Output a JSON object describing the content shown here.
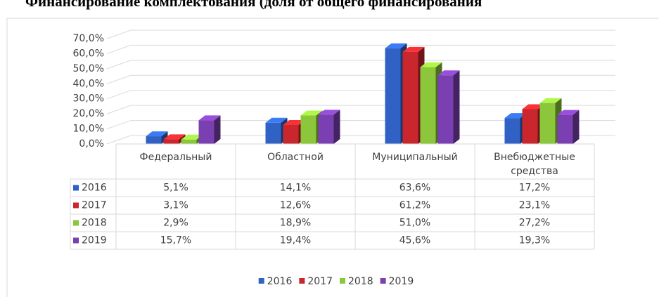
{
  "chart_data": {
    "type": "bar3d",
    "title": "Финансирование комплектования (доля от общего финансирования",
    "categories": [
      "Федеральный",
      "Областной",
      "Муниципальный",
      "Внебюджетные средства"
    ],
    "series": [
      {
        "name": "2016",
        "color": "#2f62c4",
        "values": [
          5.1,
          14.1,
          63.6,
          17.2
        ],
        "value_labels": [
          "5,1%",
          "14,1%",
          "63,6%",
          "17,2%"
        ]
      },
      {
        "name": "2017",
        "color": "#c9272d",
        "values": [
          3.1,
          12.6,
          61.2,
          23.1
        ],
        "value_labels": [
          "3,1%",
          "12,6%",
          "61,2%",
          "23,1%"
        ]
      },
      {
        "name": "2018",
        "color": "#8cc63a",
        "values": [
          2.9,
          18.9,
          51.0,
          27.2
        ],
        "value_labels": [
          "2,9%",
          "18,9%",
          "51,0%",
          "27,2%"
        ]
      },
      {
        "name": "2019",
        "color": "#7a3fb0",
        "values": [
          15.7,
          19.4,
          45.6,
          19.3
        ],
        "value_labels": [
          "15,7%",
          "19,4%",
          "45,6%",
          "19,3%"
        ]
      }
    ],
    "ylim": [
      0,
      70
    ],
    "yticks": [
      {
        "value": 0,
        "label": "0,0%"
      },
      {
        "value": 10,
        "label": "10,0%"
      },
      {
        "value": 20,
        "label": "20,0%"
      },
      {
        "value": 30,
        "label": "30,0%"
      },
      {
        "value": 40,
        "label": "40,0%"
      },
      {
        "value": 50,
        "label": "50,0%"
      },
      {
        "value": 60,
        "label": "60,0%"
      },
      {
        "value": 70,
        "label": "70,0%"
      }
    ],
    "grid": true,
    "legend": "bottom"
  }
}
